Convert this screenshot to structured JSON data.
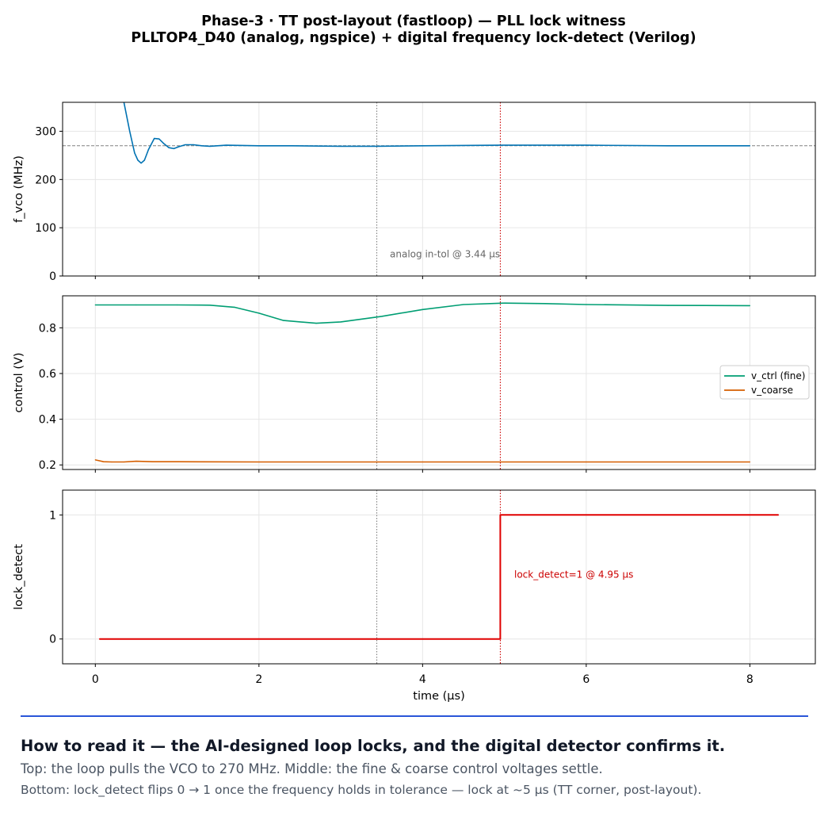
{
  "title_line1": "Phase-3 · TT post-layout (fastloop) — PLL lock witness",
  "title_line2": "PLLTOP4_D40 (analog, ngspice) + digital frequency lock-detect (Verilog)",
  "chart_data": [
    {
      "type": "line",
      "ylabel": "f_vco (MHz)",
      "xlim": [
        -0.4,
        8.8
      ],
      "ylim": [
        0,
        360
      ],
      "yticks": [
        0,
        100,
        200,
        300
      ],
      "grid": true,
      "target_line": 270,
      "series": [
        {
          "color": "#0072b2",
          "x": [
            0.35,
            0.42,
            0.48,
            0.52,
            0.56,
            0.6,
            0.65,
            0.72,
            0.78,
            0.84,
            0.9,
            0.96,
            1.02,
            1.1,
            1.2,
            1.3,
            1.4,
            1.6,
            2.0,
            2.4,
            3.0,
            3.44,
            4.0,
            4.95,
            6.0,
            7.0,
            8.0
          ],
          "y": [
            360,
            300,
            255,
            240,
            234,
            240,
            262,
            285,
            284,
            274,
            266,
            264,
            268,
            272,
            272,
            270,
            269,
            271,
            270,
            270,
            269,
            269,
            270,
            271,
            271,
            270,
            270
          ]
        }
      ],
      "annotations": [
        {
          "text": "analog in-tol @ 3.44 µs",
          "x": 3.6,
          "y": 45
        }
      ]
    },
    {
      "type": "line",
      "ylabel": "control (V)",
      "xlim": [
        -0.4,
        8.8
      ],
      "ylim": [
        0.18,
        0.94
      ],
      "yticks": [
        0.2,
        0.4,
        0.6,
        0.8
      ],
      "grid": true,
      "legend_position": "right",
      "series": [
        {
          "name": "v_ctrl (fine)",
          "color": "#009e73",
          "x": [
            0,
            0.5,
            1.0,
            1.4,
            1.7,
            2.0,
            2.3,
            2.7,
            3.0,
            3.5,
            4.0,
            4.5,
            5.0,
            5.5,
            6.0,
            7.0,
            8.0
          ],
          "y": [
            0.9,
            0.9,
            0.9,
            0.899,
            0.89,
            0.864,
            0.832,
            0.82,
            0.826,
            0.85,
            0.88,
            0.902,
            0.908,
            0.906,
            0.902,
            0.898,
            0.897
          ]
        },
        {
          "name": "v_coarse",
          "color": "#d55e00",
          "x": [
            0,
            0.05,
            0.1,
            0.2,
            0.35,
            0.5,
            0.7,
            1.0,
            2.0,
            4.0,
            6.0,
            8.0
          ],
          "y": [
            0.222,
            0.218,
            0.214,
            0.213,
            0.213,
            0.216,
            0.214,
            0.214,
            0.213,
            0.213,
            0.213,
            0.213
          ]
        }
      ]
    },
    {
      "type": "line",
      "ylabel": "lock_detect",
      "xlabel": "time (µs)",
      "xlim": [
        -0.4,
        8.8
      ],
      "ylim": [
        -0.2,
        1.2
      ],
      "yticks": [
        0,
        1
      ],
      "xticks": [
        0,
        2,
        4,
        6,
        8
      ],
      "grid": true,
      "series": [
        {
          "color": "#e00000",
          "x": [
            0.05,
            4.95,
            4.95,
            8.35
          ],
          "y": [
            0,
            0,
            1,
            1
          ]
        }
      ],
      "annotations": [
        {
          "text": "lock_detect=1 @ 4.95 µs",
          "x": 5.12,
          "y": 0.52
        }
      ]
    }
  ],
  "markers": [
    {
      "x": 3.44,
      "color": "#808080"
    },
    {
      "x": 4.95,
      "color": "#cc0000"
    }
  ],
  "caption": {
    "heading": "How to read it — the AI-designed loop locks, and the digital detector confirms it.",
    "line1": "Top: the loop pulls the VCO to 270 MHz.   Middle: the fine & coarse control voltages settle.",
    "line2": "Bottom: lock_detect flips 0 → 1 once the frequency holds in tolerance — lock at ~5 µs (TT corner, post-layout)."
  }
}
